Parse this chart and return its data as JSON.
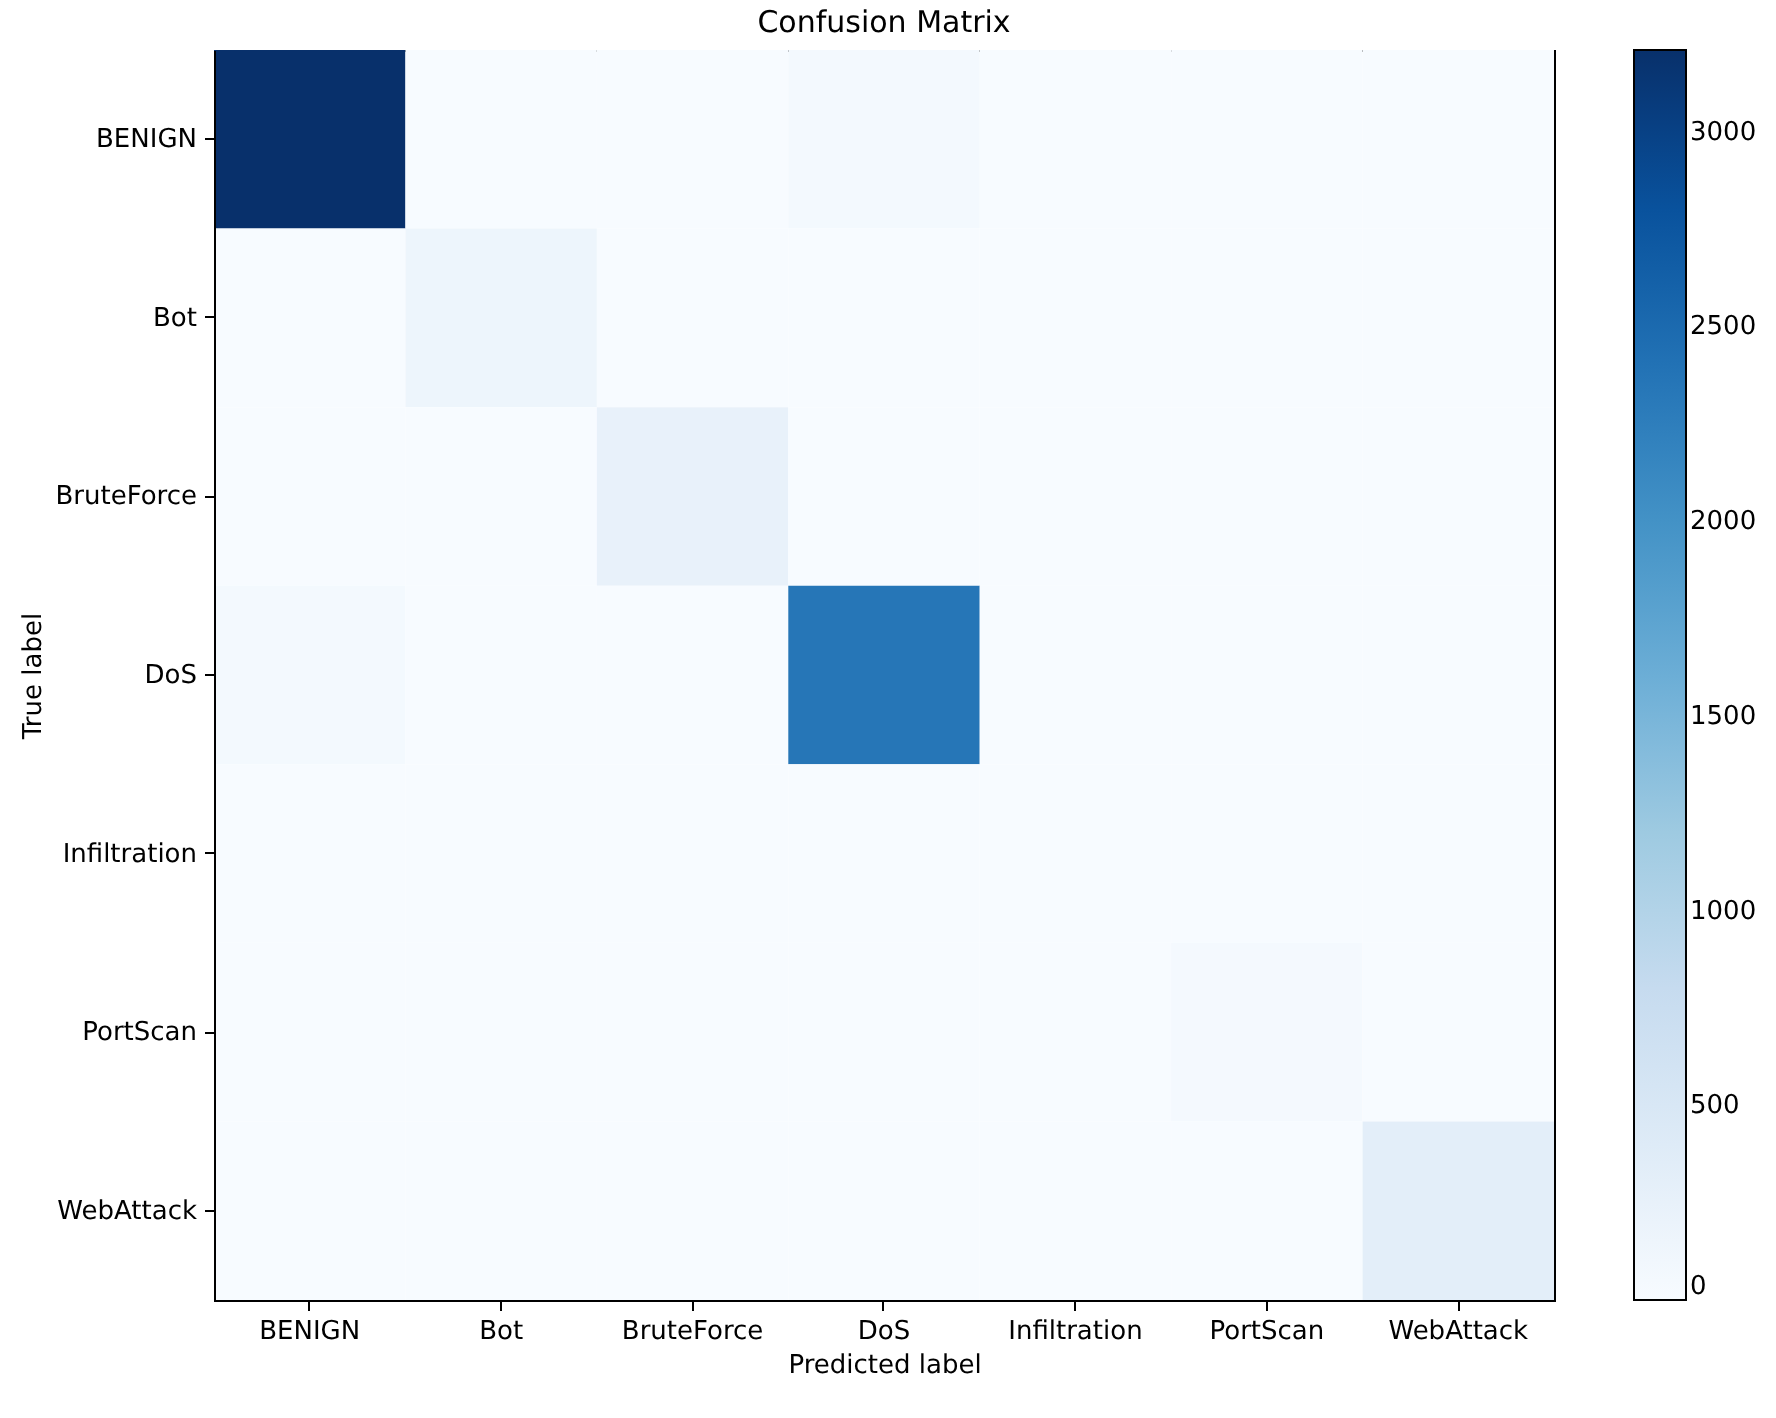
{
  "chart_data": {
    "type": "heatmap",
    "title": "Confusion Matrix",
    "xlabel": "Predicted label",
    "ylabel": "True label",
    "categories": [
      "BENIGN",
      "Bot",
      "BruteForce",
      "DoS",
      "Infiltration",
      "PortScan",
      "WebAttack"
    ],
    "y_categories": [
      "BENIGN",
      "Bot",
      "BruteForce",
      "DoS",
      "Infiltration",
      "PortScan",
      "WebAttack"
    ],
    "cells": [
      [
        3210,
        0,
        0,
        60,
        0,
        0,
        0
      ],
      [
        0,
        160,
        0,
        0,
        0,
        0,
        0
      ],
      [
        0,
        0,
        240,
        0,
        0,
        0,
        0
      ],
      [
        60,
        0,
        0,
        2350,
        0,
        0,
        0
      ],
      [
        0,
        0,
        0,
        0,
        0,
        0,
        0
      ],
      [
        0,
        0,
        0,
        0,
        0,
        50,
        0
      ],
      [
        0,
        0,
        0,
        0,
        0,
        0,
        320
      ]
    ],
    "clim": [
      0,
      3210
    ],
    "cticks": [
      0,
      500,
      1000,
      1500,
      2000,
      2500,
      3000
    ]
  }
}
